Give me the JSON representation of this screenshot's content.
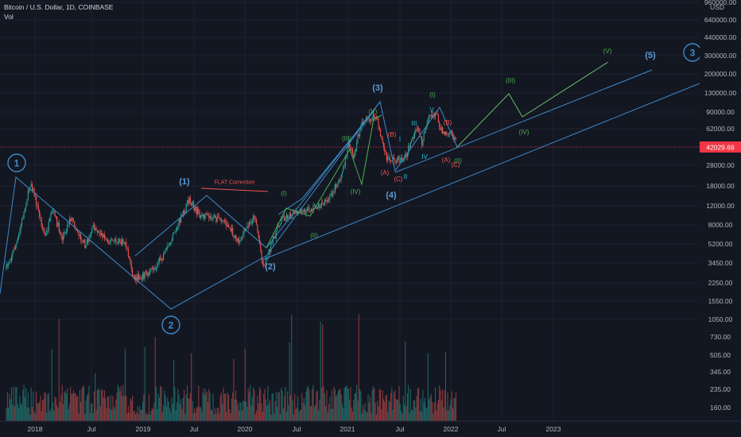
{
  "header": {
    "symbol_line": "Bitcoin / U.S. Dollar, 1D, COINBASE",
    "volume_label": "Vol"
  },
  "price_axis": {
    "currency": "USD",
    "current_price": "42029.69",
    "current_price_color": "#f23645",
    "ticks": [
      "960000.00",
      "640000.00",
      "440000.00",
      "300000.00",
      "200000.00",
      "130000.00",
      "90000.00",
      "62000.00",
      "28000.00",
      "18000.00",
      "12000.00",
      "8000.00",
      "5200.00",
      "3450.00",
      "2250.00",
      "1550.00",
      "1050.00"
    ],
    "volume_ticks": [
      "730.00",
      "505.00",
      "345.00",
      "235.00",
      "160.00"
    ]
  },
  "time_axis": {
    "ticks": [
      "2018",
      "Jul",
      "2019",
      "Jul",
      "2020",
      "Jul",
      "2021",
      "Jul",
      "2022",
      "Jul",
      "2023"
    ]
  },
  "colors": {
    "background": "#131722",
    "grid": "#1e222d",
    "up_candle": "#26a69a",
    "down_candle": "#ef5350",
    "wave_blue": "#3d8bc9",
    "wave_green": "#4caf50",
    "wave_red": "#ef5350",
    "wave_cyan": "#26c6da",
    "projection_green": "#66bb6a"
  },
  "chart_data": {
    "type": "candlestick",
    "title": "Bitcoin / U.S. Dollar, 1D, COINBASE",
    "ylabel": "USD",
    "y_scale": "log",
    "current_price": 42029.69,
    "price_path": [
      {
        "date": "2017-09-20",
        "price": 3800
      },
      {
        "date": "2017-11-01",
        "price": 6500
      },
      {
        "date": "2017-12-17",
        "price": 19500
      },
      {
        "date": "2018-02-06",
        "price": 6900
      },
      {
        "date": "2018-03-05",
        "price": 11500
      },
      {
        "date": "2018-04-06",
        "price": 6700
      },
      {
        "date": "2018-05-05",
        "price": 9800
      },
      {
        "date": "2018-06-28",
        "price": 5900
      },
      {
        "date": "2018-07-25",
        "price": 8400
      },
      {
        "date": "2018-09-15",
        "price": 6500
      },
      {
        "date": "2018-11-14",
        "price": 6300
      },
      {
        "date": "2018-12-15",
        "price": 3200
      },
      {
        "date": "2019-02-08",
        "price": 3600
      },
      {
        "date": "2019-04-02",
        "price": 5000
      },
      {
        "date": "2019-06-26",
        "price": 13800
      },
      {
        "date": "2019-08-01",
        "price": 10500
      },
      {
        "date": "2019-10-25",
        "price": 9500
      },
      {
        "date": "2019-12-18",
        "price": 6500
      },
      {
        "date": "2020-02-13",
        "price": 10400
      },
      {
        "date": "2020-03-13",
        "price": 4000
      },
      {
        "date": "2020-05-15",
        "price": 9800
      },
      {
        "date": "2020-07-28",
        "price": 11000
      },
      {
        "date": "2020-10-21",
        "price": 13000
      },
      {
        "date": "2020-12-17",
        "price": 23000
      },
      {
        "date": "2021-01-08",
        "price": 41000
      },
      {
        "date": "2021-01-22",
        "price": 30000
      },
      {
        "date": "2021-02-21",
        "price": 58000
      },
      {
        "date": "2021-04-14",
        "price": 64800
      },
      {
        "date": "2021-05-19",
        "price": 30000
      },
      {
        "date": "2021-06-22",
        "price": 29000
      },
      {
        "date": "2021-07-20",
        "price": 29500
      },
      {
        "date": "2021-09-07",
        "price": 52000
      },
      {
        "date": "2021-09-21",
        "price": 40000
      },
      {
        "date": "2021-10-20",
        "price": 66000
      },
      {
        "date": "2021-11-10",
        "price": 69000
      },
      {
        "date": "2021-12-04",
        "price": 47000
      },
      {
        "date": "2022-01-01",
        "price": 47500
      },
      {
        "date": "2022-01-20",
        "price": 42029.69
      }
    ],
    "wave_labels": [
      {
        "text": "1",
        "group": "cycle"
      },
      {
        "text": "2",
        "group": "cycle"
      },
      {
        "text": "3",
        "group": "cycle"
      },
      {
        "text": "(1)",
        "group": "primary"
      },
      {
        "text": "(2)",
        "group": "primary"
      },
      {
        "text": "(3)",
        "group": "primary"
      },
      {
        "text": "(4)",
        "group": "primary"
      },
      {
        "text": "(5)",
        "group": "primary"
      },
      {
        "text": "FLAT Correction",
        "group": "annotation"
      },
      {
        "text": "(I)",
        "group": "green"
      },
      {
        "text": "(II)",
        "group": "green"
      },
      {
        "text": "(III)",
        "group": "green"
      },
      {
        "text": "(IV)",
        "group": "green"
      },
      {
        "text": "(V)",
        "group": "green"
      },
      {
        "text": "(I)",
        "group": "green"
      },
      {
        "text": "(II)",
        "group": "green"
      },
      {
        "text": "(III)",
        "group": "green"
      },
      {
        "text": "(IV)",
        "group": "green"
      },
      {
        "text": "(V)",
        "group": "green"
      },
      {
        "text": "(A)",
        "group": "red"
      },
      {
        "text": "(B)",
        "group": "red"
      },
      {
        "text": "(C)",
        "group": "red"
      },
      {
        "text": "(A)",
        "group": "red"
      },
      {
        "text": "(B)",
        "group": "red"
      },
      {
        "text": "(C)",
        "group": "red"
      },
      {
        "text": "I",
        "group": "cyan"
      },
      {
        "text": "II",
        "group": "cyan"
      },
      {
        "text": "III",
        "group": "cyan"
      },
      {
        "text": "IV",
        "group": "cyan"
      },
      {
        "text": "V",
        "group": "cyan"
      }
    ]
  }
}
